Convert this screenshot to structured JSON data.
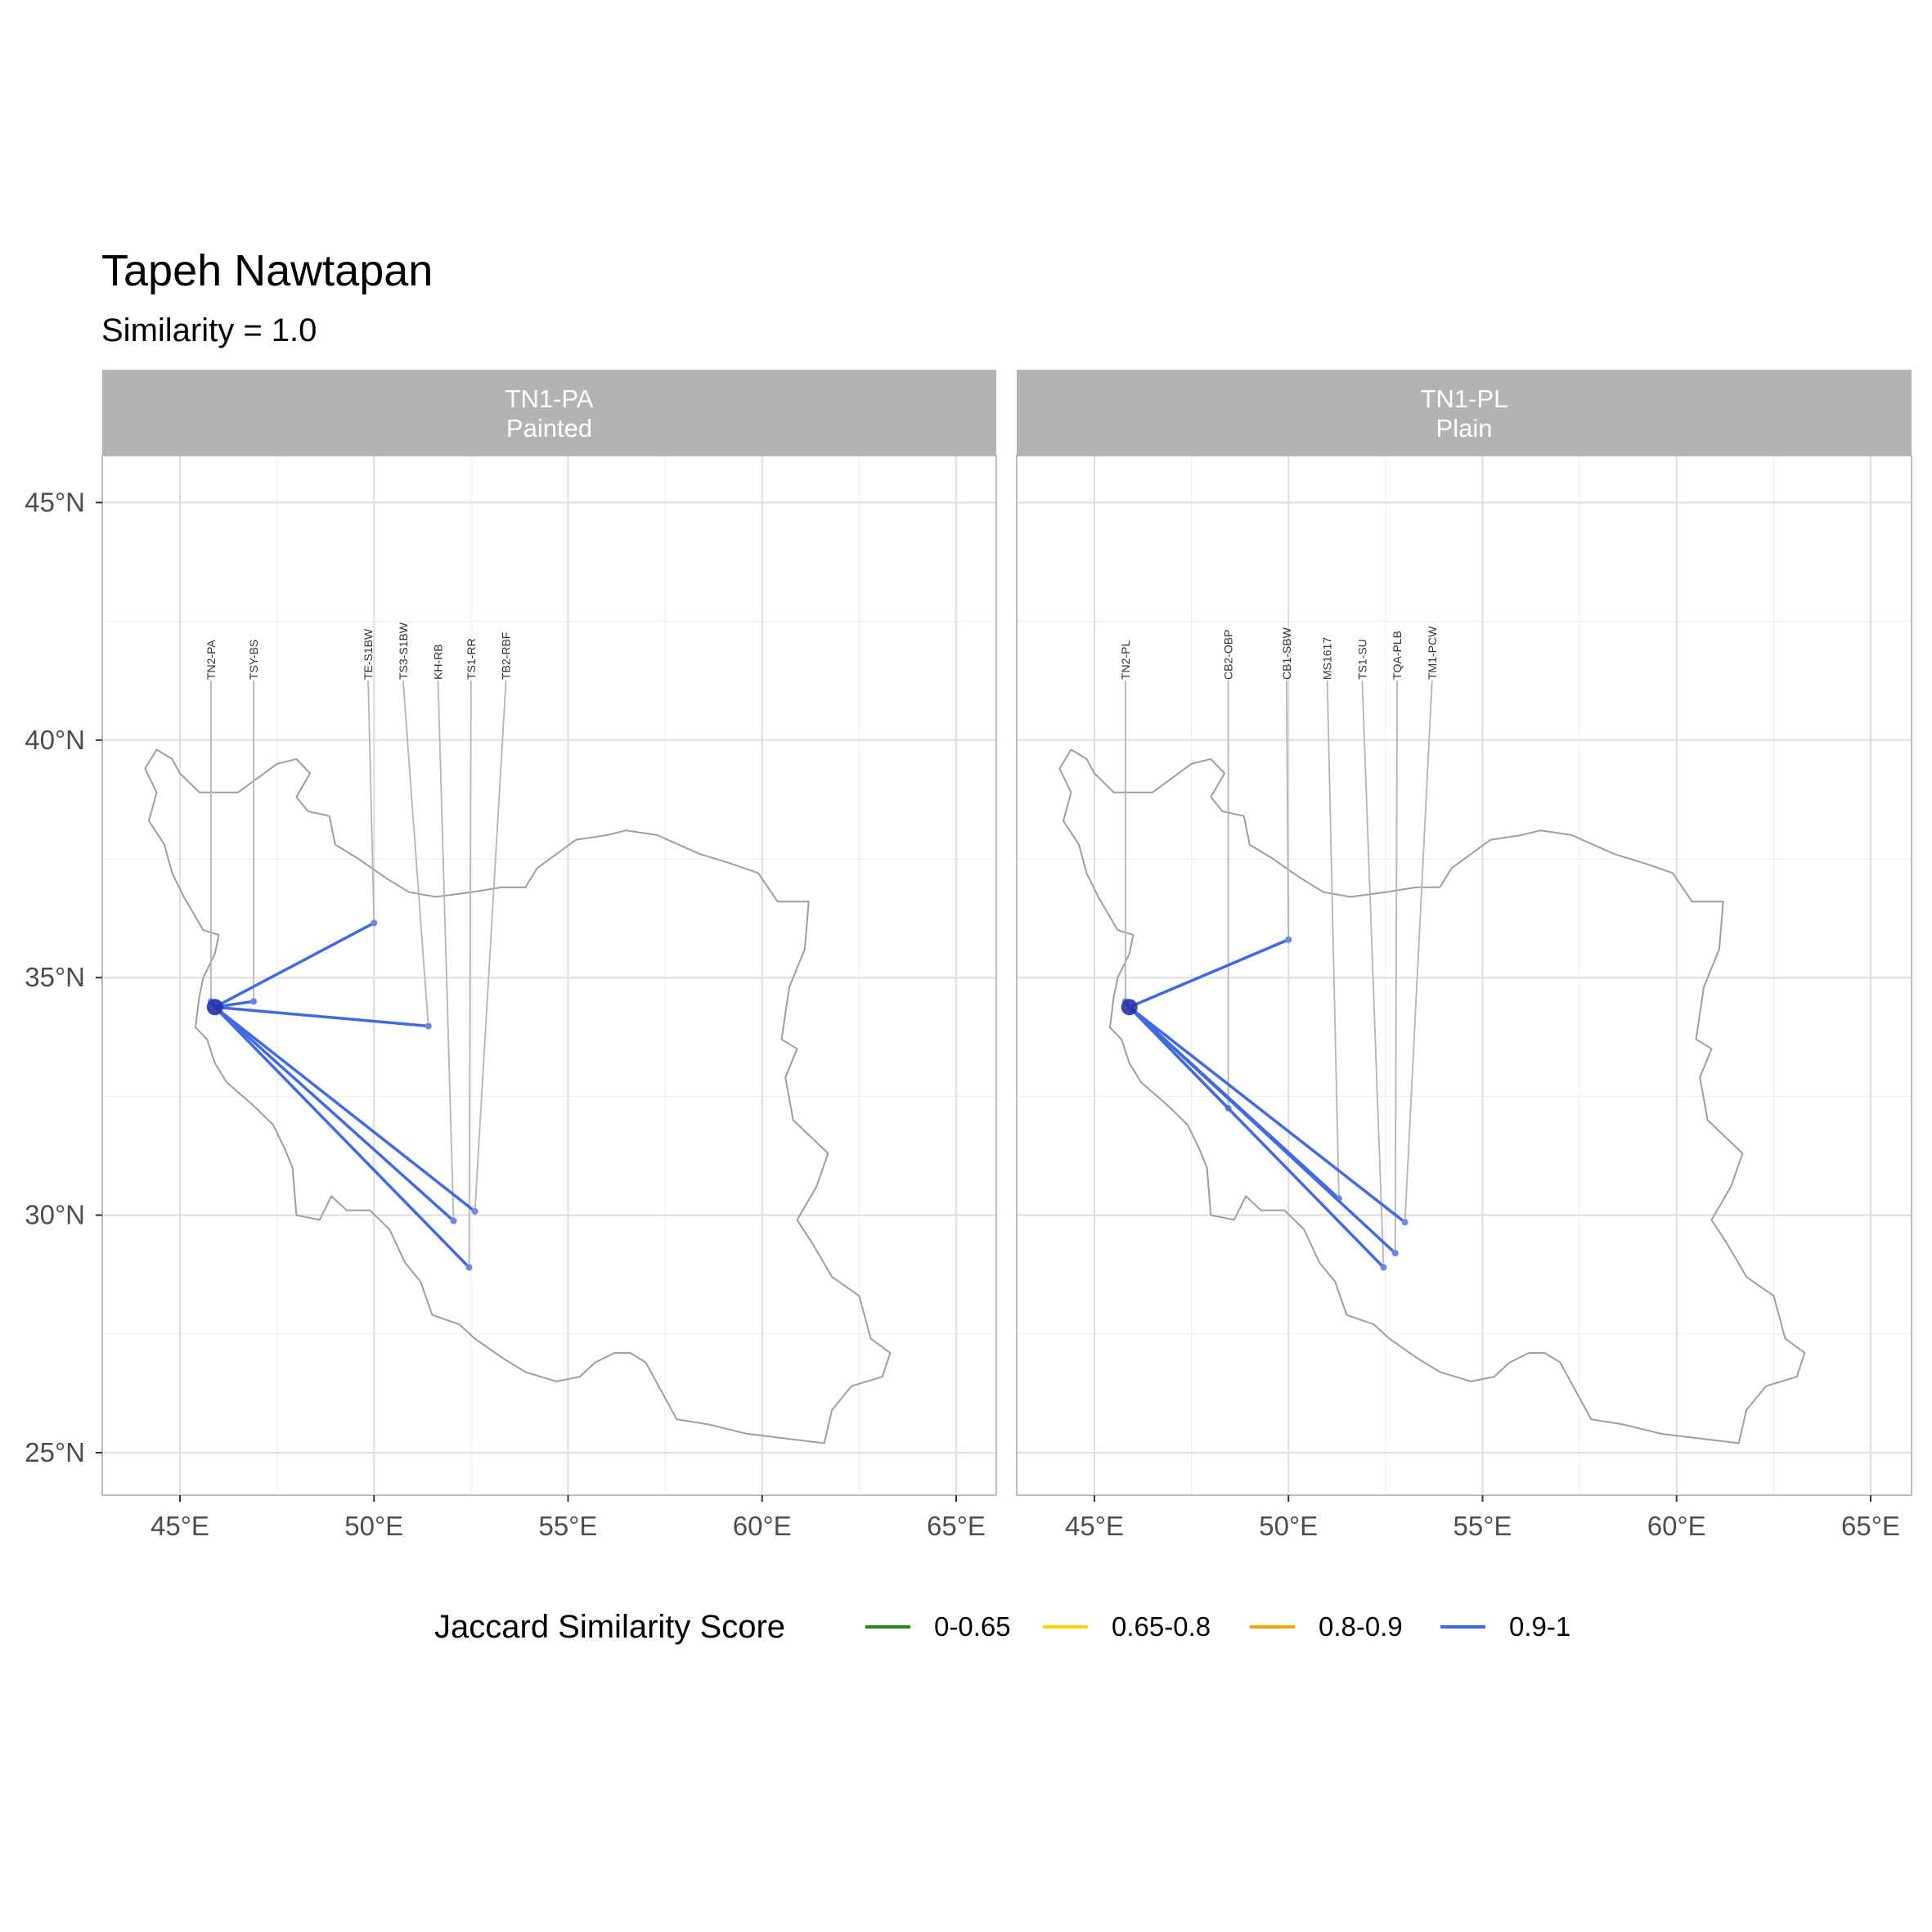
{
  "title": "Tapeh Nawtapan",
  "subtitle": "Similarity = 1.0",
  "chart_data": {
    "type": "map",
    "x_ticks": [
      "45°E",
      "50°E",
      "55°E",
      "60°E",
      "65°E"
    ],
    "y_ticks": [
      "25°N",
      "30°N",
      "35°N",
      "40°N",
      "45°N"
    ],
    "xlim": [
      43,
      66
    ],
    "ylim": [
      24.2,
      46
    ],
    "grid": true,
    "legend_position": "bottom",
    "origin": {
      "name": "Tapeh Nawtapan",
      "lon": 45.9,
      "lat": 34.38
    },
    "panels": [
      {
        "strip_line1": "TN1-PA",
        "strip_line2": "Painted",
        "sites": [
          {
            "label": "TN2-PA",
            "lon": 45.8,
            "lat": 34.5,
            "label_lon": 45.8,
            "score": "0.9-1"
          },
          {
            "label": "TSY-BS",
            "lon": 46.9,
            "lat": 34.5,
            "label_lon": 46.9,
            "score": "0.9-1"
          },
          {
            "label": "TE-S1BW",
            "lon": 50.0,
            "lat": 36.15,
            "label_lon": 49.85,
            "score": "0.9-1"
          },
          {
            "label": "TS3-S1BW",
            "lon": 51.4,
            "lat": 33.98,
            "label_lon": 50.75,
            "score": "0.9-1"
          },
          {
            "label": "KH-RB",
            "lon": 52.05,
            "lat": 29.88,
            "label_lon": 51.65,
            "score": "0.9-1"
          },
          {
            "label": "TS1-RR",
            "lon": 52.45,
            "lat": 28.9,
            "label_lon": 52.5,
            "score": "0.9-1"
          },
          {
            "label": "TB2-RBF",
            "lon": 52.6,
            "lat": 30.08,
            "label_lon": 53.4,
            "score": "0.9-1"
          }
        ]
      },
      {
        "strip_line1": "TN1-PL",
        "strip_line2": "Plain",
        "sites": [
          {
            "label": "TN2-PL",
            "lon": 45.8,
            "lat": 34.5,
            "label_lon": 45.8,
            "score": "0.9-1"
          },
          {
            "label": "CB2-OBP",
            "lon": 48.45,
            "lat": 32.25,
            "label_lon": 48.45,
            "score": "0.9-1"
          },
          {
            "label": "CB1-SBW",
            "lon": 50.0,
            "lat": 35.8,
            "label_lon": 49.95,
            "score": "0.9-1"
          },
          {
            "label": "MS1617",
            "lon": 51.3,
            "lat": 30.35,
            "label_lon": 51.0,
            "score": "0.9-1"
          },
          {
            "label": "TS1-SU",
            "lon": 52.45,
            "lat": 28.9,
            "label_lon": 51.9,
            "score": "0.9-1"
          },
          {
            "label": "TQA-PLB",
            "lon": 52.75,
            "lat": 29.2,
            "label_lon": 52.8,
            "score": "0.9-1"
          },
          {
            "label": "TM1-PCW",
            "lon": 53.0,
            "lat": 29.85,
            "label_lon": 53.7,
            "score": "0.9-1"
          }
        ]
      }
    ],
    "legend": {
      "title": "Jaccard Similarity Score",
      "items": [
        {
          "label": "0-0.65",
          "color": "#228B22"
        },
        {
          "label": "0.65-0.8",
          "color": "#FFD700"
        },
        {
          "label": "0.8-0.9",
          "color": "#FFA500"
        },
        {
          "label": "0.9-1",
          "color": "#4169E1"
        }
      ]
    }
  }
}
